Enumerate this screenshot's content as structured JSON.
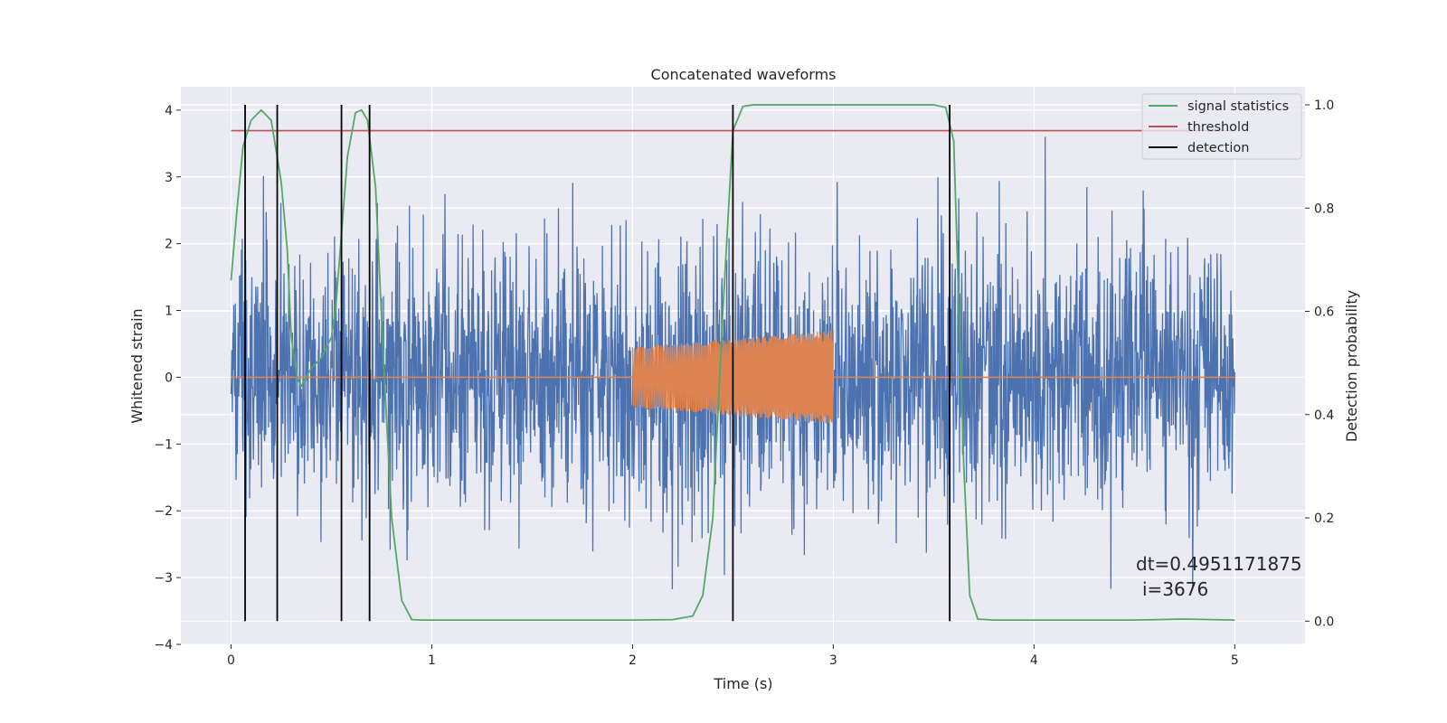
{
  "chart_data": {
    "type": "line",
    "title": "Concatenated waveforms",
    "xlabel": "Time (s)",
    "ylabel": "Whitened strain",
    "ylabel_right": "Detection probability",
    "xlim": [
      -0.25,
      5.35
    ],
    "ylim": [
      -4,
      4.35
    ],
    "ylim_right": [
      -0.045,
      1.035
    ],
    "x_ticks": [
      0,
      1,
      2,
      3,
      4,
      5
    ],
    "x_tick_labels": [
      "0",
      "1",
      "2",
      "3",
      "4",
      "5"
    ],
    "y_ticks": [
      -4,
      -3,
      -2,
      -1,
      0,
      1,
      2,
      3,
      4
    ],
    "y_tick_labels": [
      "−4",
      "−3",
      "−2",
      "−1",
      "0",
      "1",
      "2",
      "3",
      "4"
    ],
    "y2_ticks": [
      0.0,
      0.2,
      0.4,
      0.6,
      0.8,
      1.0
    ],
    "y2_tick_labels": [
      "0.0",
      "0.2",
      "0.4",
      "0.6",
      "0.8",
      "1.0"
    ],
    "grid": true,
    "legend_position": "top-right",
    "colors": {
      "axes_bg": "#eaeaf2",
      "grid": "#ffffff",
      "noise": "#4c72b0",
      "injection": "#dd8452",
      "signal_statistics": "#55a868",
      "threshold": "#c44e52",
      "detection": "#000000"
    },
    "series": [
      {
        "name": "",
        "axis": "left",
        "kind": "noise",
        "x_range": [
          0,
          5
        ],
        "amplitude_typical": 1.0,
        "amplitude_peak": 3.6
      },
      {
        "name": "",
        "axis": "left",
        "kind": "chirp",
        "x_range": [
          2.0,
          3.0
        ],
        "amplitude_start": 0.45,
        "amplitude_end": 0.7,
        "baseline": 0
      },
      {
        "name": "signal statistics",
        "axis": "right",
        "x": [
          0.0,
          0.03,
          0.06,
          0.1,
          0.15,
          0.2,
          0.25,
          0.28,
          0.3,
          0.33,
          0.35,
          0.37,
          0.4,
          0.45,
          0.5,
          0.52,
          0.55,
          0.58,
          0.62,
          0.65,
          0.68,
          0.72,
          0.76,
          0.8,
          0.85,
          0.9,
          0.95,
          1.0,
          1.5,
          2.0,
          2.2,
          2.3,
          2.35,
          2.4,
          2.45,
          2.5,
          2.55,
          2.6,
          3.0,
          3.5,
          3.56,
          3.6,
          3.65,
          3.68,
          3.72,
          3.8,
          4.0,
          4.5,
          4.75,
          5.0
        ],
        "y": [
          0.66,
          0.8,
          0.92,
          0.97,
          0.99,
          0.97,
          0.85,
          0.72,
          0.55,
          0.47,
          0.455,
          0.47,
          0.49,
          0.51,
          0.55,
          0.6,
          0.75,
          0.9,
          0.985,
          0.99,
          0.97,
          0.84,
          0.5,
          0.2,
          0.04,
          0.003,
          0.002,
          0.002,
          0.002,
          0.002,
          0.003,
          0.01,
          0.05,
          0.2,
          0.6,
          0.95,
          0.997,
          1.0,
          1.0,
          1.0,
          0.995,
          0.93,
          0.3,
          0.05,
          0.004,
          0.002,
          0.002,
          0.002,
          0.004,
          0.002
        ]
      },
      {
        "name": "threshold",
        "axis": "right",
        "x": [
          0,
          5
        ],
        "y": [
          0.95,
          0.95
        ]
      },
      {
        "name": "detection",
        "axis": "right",
        "kind": "vlines",
        "x": [
          0.07,
          0.23,
          0.55,
          0.69,
          2.5,
          3.58
        ],
        "y_range": [
          0.0,
          1.0
        ]
      }
    ],
    "annotation": {
      "line1": "dt=0.4951171875",
      "line2": "i=3676"
    }
  }
}
